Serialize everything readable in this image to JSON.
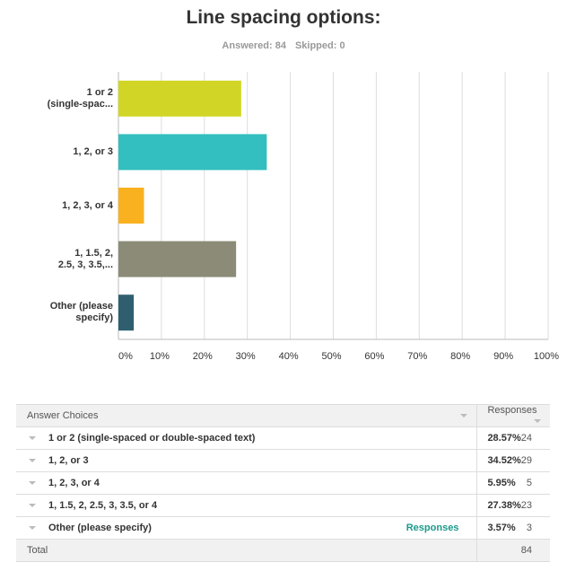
{
  "header": {
    "title": "Line spacing options:",
    "answered": "Answered: 84",
    "skipped": "Skipped: 0"
  },
  "chart_data": {
    "type": "hbar",
    "categories": [
      "1 or 2\n(single-spac...",
      "1, 2, or 3",
      "1, 2, 3, or 4",
      "1, 1.5, 2,\n2.5, 3, 3.5,...",
      "Other (please\nspecify)"
    ],
    "values": [
      28.57,
      34.52,
      5.95,
      27.38,
      3.57
    ],
    "colors": [
      "#d1d626",
      "#33bfbf",
      "#f9b120",
      "#8b8b78",
      "#2f5f6f"
    ],
    "xlim": [
      0,
      100
    ],
    "xticks": [
      {
        "value": 0,
        "label": "0%"
      },
      {
        "value": 10,
        "label": "10%"
      },
      {
        "value": 20,
        "label": "20%"
      },
      {
        "value": 30,
        "label": "30%"
      },
      {
        "value": 40,
        "label": "40%"
      },
      {
        "value": 50,
        "label": "50%"
      },
      {
        "value": 60,
        "label": "60%"
      },
      {
        "value": 70,
        "label": "70%"
      },
      {
        "value": 80,
        "label": "80%"
      },
      {
        "value": 90,
        "label": "90%"
      },
      {
        "value": 100,
        "label": "100%"
      }
    ],
    "grid": true
  },
  "table": {
    "columns": [
      "Answer Choices",
      "Responses"
    ],
    "rows": [
      {
        "choice": "1 or 2 (single-spaced or double-spaced text)",
        "percent": "28.57%",
        "count": 24
      },
      {
        "choice": "1, 2, or 3",
        "percent": "34.52%",
        "count": 29
      },
      {
        "choice": "1, 2, 3, or 4",
        "percent": "5.95%",
        "count": 5
      },
      {
        "choice": "1, 1.5, 2, 2.5, 3, 3.5, or 4",
        "percent": "27.38%",
        "count": 23
      },
      {
        "choice": "Other (please specify)",
        "link": "Responses",
        "percent": "3.57%",
        "count": 3
      }
    ],
    "total": {
      "label": "Total",
      "count": 84
    }
  }
}
